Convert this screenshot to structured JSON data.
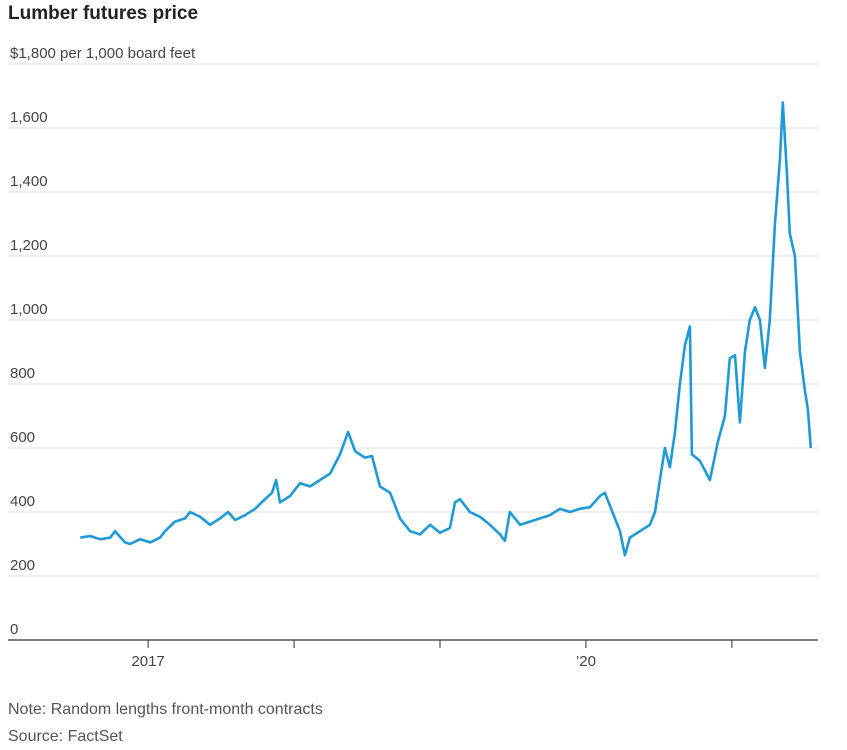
{
  "chart_data": {
    "type": "line",
    "title": "Lumber futures price",
    "notes": [
      "Note: Random lengths front-month contracts",
      "Source: FactSet"
    ],
    "xlim": [
      2016.04,
      2021.59
    ],
    "xticks": [
      2017,
      {
        "value": 2020,
        "label": "’20"
      }
    ],
    "xminor_ticks": [
      2018,
      2019,
      2021
    ],
    "ylim": [
      0,
      1800
    ],
    "yticks": [
      0,
      200,
      400,
      600,
      800,
      {
        "value": 1000,
        "label": "1,000"
      },
      {
        "value": 1200,
        "label": "1,200"
      },
      {
        "value": 1400,
        "label": "1,400"
      },
      {
        "value": 1600,
        "label": "1,600"
      },
      {
        "value": 1800,
        "label": "$1,800 per 1,000 board feet"
      }
    ],
    "grid": true,
    "series": [
      {
        "color": "#1e9ad6",
        "x": [
          2016.534,
          2016.603,
          2016.671,
          2016.74,
          2016.774,
          2016.842,
          2016.877,
          2016.945,
          2017.014,
          2017.082,
          2017.116,
          2017.185,
          2017.253,
          2017.288,
          2017.356,
          2017.425,
          2017.493,
          2017.548,
          2017.596,
          2017.664,
          2017.733,
          2017.801,
          2017.849,
          2017.877,
          2017.904,
          2017.973,
          2018.041,
          2018.11,
          2018.178,
          2018.247,
          2018.315,
          2018.37,
          2018.418,
          2018.486,
          2018.534,
          2018.589,
          2018.658,
          2018.726,
          2018.795,
          2018.863,
          2018.932,
          2019.0,
          2019.068,
          2019.103,
          2019.137,
          2019.205,
          2019.274,
          2019.342,
          2019.411,
          2019.445,
          2019.479,
          2019.548,
          2019.616,
          2019.685,
          2019.753,
          2019.822,
          2019.89,
          2019.959,
          2020.027,
          2020.096,
          2020.13,
          2020.164,
          2020.233,
          2020.267,
          2020.301,
          2020.37,
          2020.438,
          2020.473,
          2020.507,
          2020.541,
          2020.575,
          2020.61,
          2020.644,
          2020.678,
          2020.712,
          2020.726,
          2020.781,
          2020.849,
          2020.904,
          2020.952,
          2020.986,
          2021.021,
          2021.055,
          2021.089,
          2021.123,
          2021.158,
          2021.192,
          2021.226,
          2021.26,
          2021.295,
          2021.329,
          2021.349,
          2021.377,
          2021.397,
          2021.432,
          2021.466,
          2021.5,
          2021.521,
          2021.541
        ],
        "values": [
          320,
          325,
          315,
          320,
          340,
          305,
          300,
          315,
          305,
          320,
          340,
          370,
          380,
          400,
          385,
          360,
          380,
          400,
          375,
          390,
          410,
          440,
          460,
          500,
          430,
          450,
          490,
          480,
          500,
          520,
          580,
          650,
          590,
          570,
          575,
          480,
          460,
          380,
          340,
          330,
          360,
          335,
          350,
          430,
          440,
          400,
          385,
          360,
          330,
          310,
          400,
          360,
          370,
          380,
          390,
          410,
          400,
          410,
          415,
          450,
          460,
          420,
          340,
          265,
          320,
          340,
          360,
          400,
          500,
          600,
          540,
          650,
          800,
          920,
          980,
          580,
          560,
          500,
          620,
          700,
          880,
          890,
          680,
          900,
          1000,
          1040,
          1000,
          850,
          1000,
          1300,
          1500,
          1680,
          1460,
          1270,
          1200,
          900,
          780,
          720,
          600
        ]
      }
    ]
  }
}
